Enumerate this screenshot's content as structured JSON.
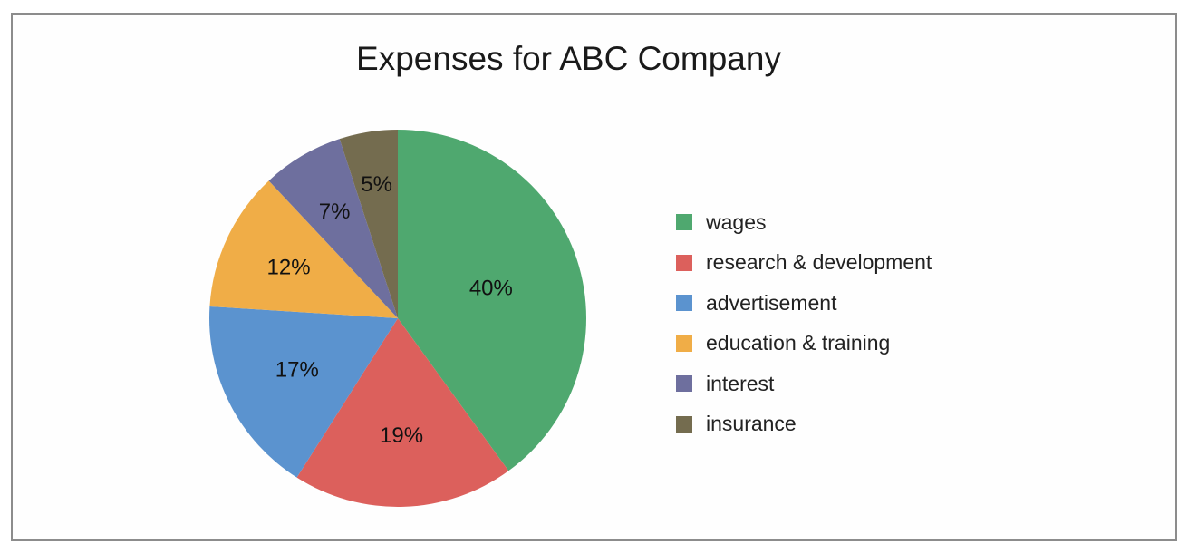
{
  "chart_data": {
    "type": "pie",
    "title": "Expenses for ABC Company",
    "categories": [
      "wages",
      "research & development",
      "advertisement",
      "education & training",
      "interest",
      "insurance"
    ],
    "values": [
      40,
      19,
      17,
      12,
      7,
      5
    ],
    "value_labels": [
      "40%",
      "19%",
      "17%",
      "12%",
      "7%",
      "5%"
    ],
    "colors": [
      "#4fa86f",
      "#dc605c",
      "#5b93cf",
      "#f0ad47",
      "#6e6f9e",
      "#746c4f"
    ],
    "legend_position": "right"
  }
}
